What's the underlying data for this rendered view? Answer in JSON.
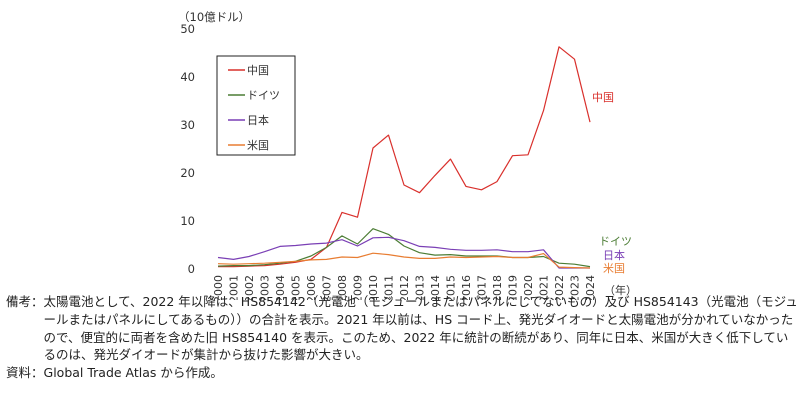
{
  "chart_data": {
    "type": "line",
    "unit_label": "（10億ドル）",
    "year_unit": "（年）",
    "x": [
      "2000",
      "2001",
      "2002",
      "2003",
      "2004",
      "2005",
      "2006",
      "2007",
      "2008",
      "2009",
      "2010",
      "2011",
      "2012",
      "2013",
      "2014",
      "2015",
      "2016",
      "2017",
      "2018",
      "2019",
      "2020",
      "2021",
      "2022",
      "2023",
      "2024"
    ],
    "ylim": [
      0,
      50
    ],
    "yticks": [
      0,
      10,
      20,
      30,
      40,
      50
    ],
    "grid": false,
    "legend_position": "top-left",
    "series": [
      {
        "name": "中国",
        "color": "#d9302c",
        "values": [
          0.5,
          0.5,
          0.6,
          0.7,
          1.0,
          1.4,
          2.0,
          4.5,
          11.8,
          10.8,
          25.2,
          27.9,
          17.5,
          15.9,
          19.5,
          22.9,
          17.2,
          16.5,
          18.2,
          23.6,
          23.8,
          33.0,
          46.3,
          43.7,
          30.6
        ]
      },
      {
        "name": "ドイツ",
        "color": "#4c7d35",
        "values": [
          0.6,
          0.7,
          0.7,
          0.9,
          1.2,
          1.6,
          2.7,
          4.5,
          6.9,
          5.2,
          8.4,
          7.2,
          4.8,
          3.4,
          2.9,
          3.0,
          2.7,
          2.7,
          2.7,
          2.4,
          2.4,
          2.6,
          1.2,
          1.0,
          0.5
        ]
      },
      {
        "name": "日本",
        "color": "#7a3fb5",
        "values": [
          2.4,
          2.0,
          2.6,
          3.6,
          4.7,
          4.9,
          5.2,
          5.4,
          6.1,
          4.8,
          6.5,
          6.6,
          5.9,
          4.7,
          4.5,
          4.1,
          3.9,
          3.9,
          4.0,
          3.6,
          3.6,
          4.0,
          0.2,
          0.2,
          0.2
        ]
      },
      {
        "name": "米国",
        "color": "#e87d32",
        "values": [
          1.1,
          1.0,
          1.1,
          1.2,
          1.4,
          1.6,
          1.9,
          2.0,
          2.5,
          2.4,
          3.3,
          3.0,
          2.5,
          2.2,
          2.2,
          2.5,
          2.4,
          2.5,
          2.6,
          2.4,
          2.4,
          3.2,
          0.4,
          0.3,
          0.2
        ]
      }
    ]
  },
  "notes": [
    {
      "label": "備考：",
      "text": "太陽電池として、2022 年以降は、HS854142（光電池（モジュールまたはパネルにしてないもの）及び HS854143（光電池（モジュールまたはパネルにしてあるもの））の合計を表示。2021 年以前は、HS コード上、発光ダイオードと太陽電池が分かれていなかったので、便宜的に両者を含めた旧 HS854140 を表示。このため、2022 年に統計の断続があり、同年に日本、米国が大きく低下しているのは、発光ダイオードが集計から抜けた影響が大きい。"
    },
    {
      "label": "資料：",
      "text": "Global Trade Atlas から作成。"
    }
  ]
}
